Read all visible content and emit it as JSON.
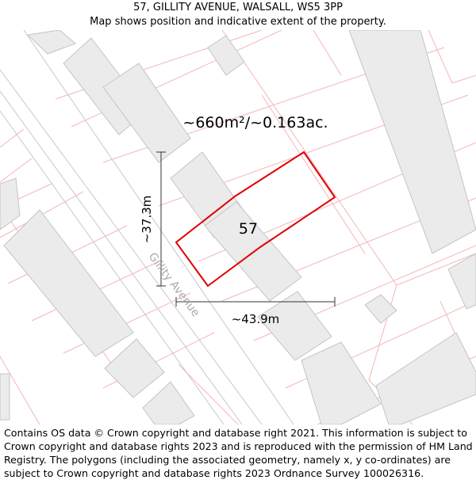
{
  "header": {
    "address": "57, GILLITY AVENUE, WALSALL, WS5 3PP",
    "subtitle": "Map shows position and indicative extent of the property."
  },
  "map": {
    "area_label": "~660m²/~0.163ac.",
    "plot_number": "57",
    "street_name": "Gillity Avenue",
    "height_dimension": "~37.3m",
    "width_dimension": "~43.9m",
    "colors": {
      "boundary": "#e00000",
      "parcel_lines": "#f4b6b6",
      "buildings_fill": "#ebebeb",
      "buildings_stroke": "#c4c4c4",
      "road_edges": "#c8c8c8",
      "measure": "#333333"
    }
  },
  "footer": {
    "copyright": "Contains OS data © Crown copyright and database right 2021. This information is subject to Crown copyright and database rights 2023 and is reproduced with the permission of HM Land Registry. The polygons (including the associated geometry, namely x, y co-ordinates) are subject to Crown copyright and database rights 2023 Ordnance Survey 100026316."
  }
}
